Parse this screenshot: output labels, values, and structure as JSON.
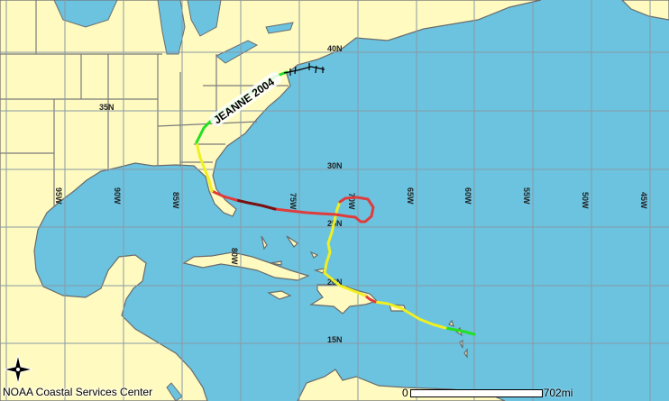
{
  "map": {
    "storm_label": "JEANNE 2004",
    "credit": "NOAA Coastal Services Center",
    "scale": {
      "start": "0",
      "end": "702mi"
    },
    "longitude_labels": [
      "95W",
      "90W",
      "85W",
      "80W",
      "75W",
      "70W",
      "65W",
      "60W",
      "55W",
      "50W",
      "45W"
    ],
    "latitude_labels": [
      "40N",
      "35N",
      "30N",
      "25N",
      "20N",
      "15N"
    ],
    "track_colors": {
      "tropical_depression": "#22e022",
      "tropical_storm": "#f0f020",
      "hurricane_cat1": "#e03c3c",
      "hurricane_cat3": "#7a1010",
      "extratropical": "#000000"
    },
    "ocean_color": "#6bc3e0",
    "land_color": "#fffbc0",
    "compass_icon": "north-arrow-compass"
  }
}
